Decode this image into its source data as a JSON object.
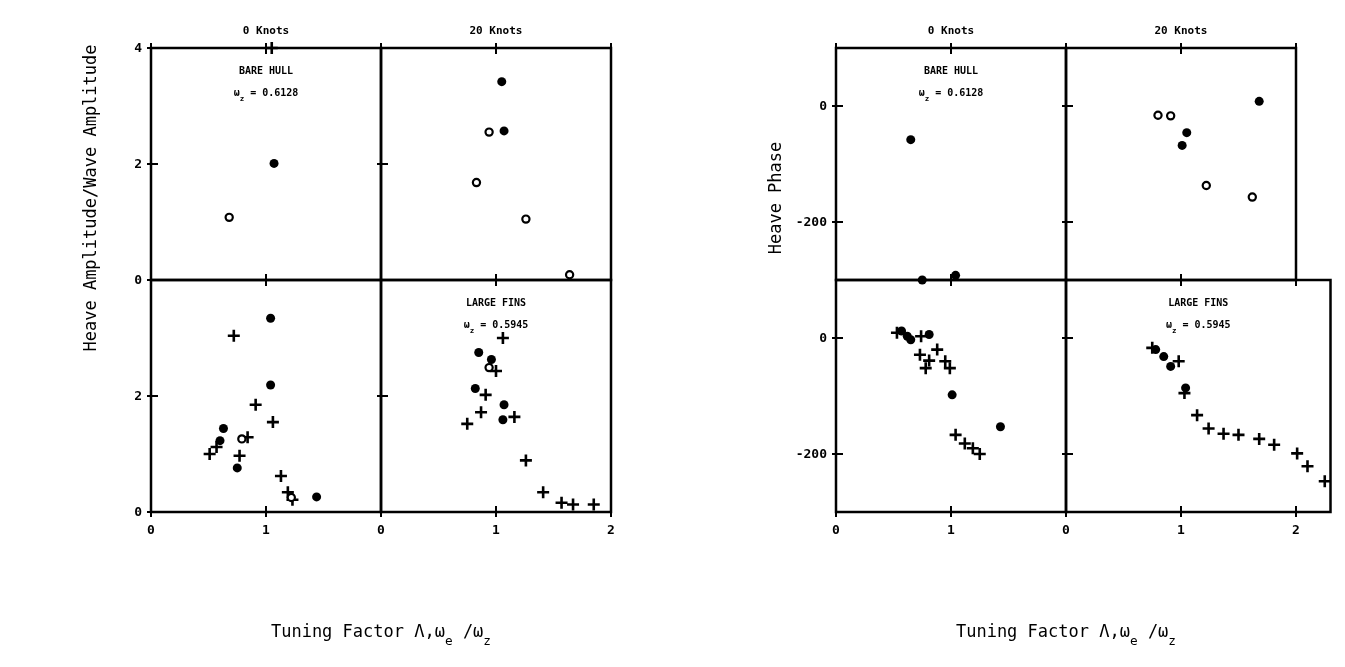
{
  "chart_data": [
    {
      "type": "scatter",
      "title": "0 Knots",
      "ylabel": "Heave Amplitude/Wave Amplitude",
      "annotations": [
        "BARE HULL",
        "ω$_{z}$ = 0.6128"
      ],
      "xlim": [
        0,
        2
      ],
      "ylim": [
        0,
        4
      ],
      "xticks": [
        0,
        1
      ],
      "yticks": [
        0,
        2,
        4
      ],
      "tick_labels": "y",
      "series": [
        {
          "color": "#000000",
          "marker": "circle",
          "values": [
            2.01
          ],
          "x": [
            1.07
          ]
        },
        {
          "color": "#000000",
          "marker": "circle-open",
          "values": [
            1.08
          ],
          "x": [
            0.68
          ]
        },
        {
          "color": "#000000",
          "marker": "cross",
          "values": [
            4.0
          ],
          "x": [
            1.05
          ]
        }
      ]
    },
    {
      "type": "scatter",
      "title": "20 Knots",
      "xlim": [
        0,
        2
      ],
      "ylim": [
        0,
        4
      ],
      "xticks": [
        0,
        1,
        2
      ],
      "yticks": [
        0,
        2,
        4
      ],
      "tick_labels": false,
      "series": [
        {
          "color": "#000000",
          "marker": "circle",
          "values": [
            3.42,
            2.57
          ],
          "x": [
            1.05,
            1.07
          ]
        },
        {
          "color": "#000000",
          "marker": "circle-open",
          "values": [
            2.55,
            1.68,
            1.05,
            0.09
          ],
          "x": [
            0.94,
            0.83,
            1.26,
            1.64
          ]
        }
      ]
    },
    {
      "type": "scatter",
      "xlabel": "Tuning Factor Λ,ω$_{e}$/ω$_{z}$",
      "xlim": [
        0,
        2
      ],
      "ylim": [
        0,
        4
      ],
      "xticks": [
        0,
        1
      ],
      "yticks": [
        0,
        2
      ],
      "series": [
        {
          "color": "#000000",
          "marker": "circle",
          "values": [
            3.34,
            2.19,
            1.44,
            1.23,
            0.76,
            0.26
          ],
          "x": [
            1.04,
            1.04,
            0.63,
            0.6,
            0.75,
            1.44
          ]
        },
        {
          "color": "#000000",
          "marker": "circle-open",
          "values": [
            1.26,
            0.25
          ],
          "x": [
            0.79,
            1.22
          ]
        },
        {
          "color": "#000000",
          "marker": "cross",
          "values": [
            3.04,
            1.85,
            1.55,
            1.0,
            1.12,
            1.29,
            0.97,
            0.62,
            0.34,
            0.21
          ],
          "x": [
            0.72,
            0.91,
            1.06,
            0.51,
            0.57,
            0.84,
            0.77,
            1.13,
            1.19,
            1.23
          ]
        }
      ]
    },
    {
      "type": "scatter",
      "annotations": [
        "LARGE FINS",
        "ω$_{z}$ = 0.5945"
      ],
      "xlim": [
        0,
        2
      ],
      "ylim": [
        0,
        4
      ],
      "xticks": [
        0,
        1,
        2
      ],
      "yticks": [
        0,
        2
      ],
      "tick_labels": "x",
      "series": [
        {
          "color": "#000000",
          "marker": "circle",
          "values": [
            2.75,
            2.63,
            2.13,
            1.85,
            1.59
          ],
          "x": [
            0.85,
            0.96,
            0.82,
            1.07,
            1.06
          ]
        },
        {
          "color": "#000000",
          "marker": "circle-open",
          "values": [
            2.49
          ],
          "x": [
            0.94
          ]
        },
        {
          "color": "#000000",
          "marker": "cross",
          "values": [
            3.0,
            2.43,
            2.02,
            1.72,
            1.64,
            1.52,
            0.89,
            0.34,
            0.16,
            0.13,
            0.13
          ],
          "x": [
            1.06,
            1.0,
            0.91,
            0.87,
            1.16,
            0.75,
            1.26,
            1.41,
            1.57,
            1.67,
            1.85
          ]
        }
      ]
    },
    {
      "type": "scatter",
      "title": "0 Knots",
      "ylabel": "Heave Phase",
      "annotations": [
        "BARE HULL",
        "ω$_{z}$ = 0.6128"
      ],
      "xlim": [
        0,
        2
      ],
      "ylim": [
        -300,
        100
      ],
      "xticks": [
        0,
        1
      ],
      "yticks": [
        0,
        -200
      ],
      "tick_labels": "y",
      "series": [
        {
          "color": "#000000",
          "marker": "circle",
          "values": [
            -58,
            -300,
            -292
          ],
          "x": [
            0.65,
            0.75,
            1.04
          ]
        }
      ]
    },
    {
      "type": "scatter",
      "title": "20 Knots",
      "xlim": [
        0,
        2
      ],
      "ylim": [
        -300,
        100
      ],
      "xticks": [
        0,
        1,
        2
      ],
      "yticks": [
        0,
        -200
      ],
      "tick_labels": false,
      "series": [
        {
          "color": "#000000",
          "marker": "circle",
          "values": [
            -46,
            -68,
            8
          ],
          "x": [
            1.05,
            1.01,
            1.68
          ]
        },
        {
          "color": "#000000",
          "marker": "circle-open",
          "values": [
            -16,
            -17,
            -137,
            -157
          ],
          "x": [
            0.8,
            0.91,
            1.22,
            1.62
          ]
        }
      ]
    },
    {
      "type": "scatter",
      "xlabel": "Tuning Factor Λ,ω$_{e}$/ω$_{z}$",
      "xlim": [
        0,
        2
      ],
      "ylim": [
        -300,
        100
      ],
      "xticks": [
        0,
        1
      ],
      "yticks": [
        0,
        -200
      ],
      "series": [
        {
          "color": "#000000",
          "marker": "circle",
          "values": [
            12,
            -3,
            6,
            3,
            -98,
            -153
          ],
          "x": [
            0.57,
            0.65,
            0.81,
            0.62,
            1.01,
            1.43
          ]
        },
        {
          "color": "#000000",
          "marker": "cross",
          "values": [
            9,
            3,
            -29,
            -20,
            -39,
            -52,
            -40,
            -52,
            -167,
            -182,
            -190,
            -200
          ],
          "x": [
            0.53,
            0.74,
            0.73,
            0.88,
            0.81,
            0.78,
            0.95,
            0.99,
            1.04,
            1.12,
            1.19,
            1.25
          ]
        }
      ]
    },
    {
      "type": "scatter",
      "annotations": [
        "LARGE FINS",
        "ω$_{z}$ = 0.5945"
      ],
      "xlim": [
        0,
        2.3
      ],
      "ylim": [
        -300,
        100
      ],
      "xticks": [
        0,
        1,
        2
      ],
      "yticks": [
        0,
        -200
      ],
      "tick_labels": "x",
      "series": [
        {
          "color": "#000000",
          "marker": "circle",
          "values": [
            -20,
            -32,
            -49,
            -86
          ],
          "x": [
            0.78,
            0.85,
            0.91,
            1.04
          ]
        },
        {
          "color": "#000000",
          "marker": "cross",
          "values": [
            -17,
            -40,
            -95,
            -133,
            -156,
            -165,
            -167,
            -174,
            -184,
            -199,
            -221,
            -247
          ],
          "x": [
            0.75,
            0.98,
            1.03,
            1.14,
            1.24,
            1.37,
            1.5,
            1.68,
            1.81,
            2.01,
            2.1,
            2.25
          ]
        }
      ]
    }
  ]
}
